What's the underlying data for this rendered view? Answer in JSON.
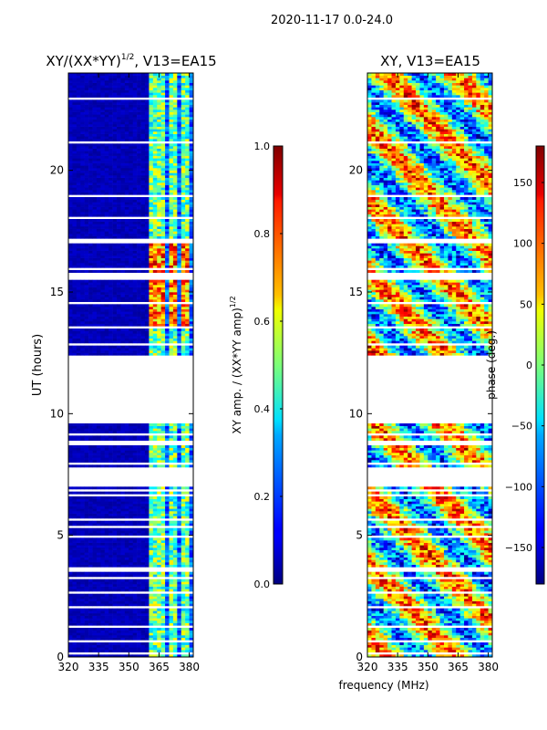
{
  "figure": {
    "suptitle": "2020-11-17 0.0-24.0",
    "shared_xlabel": "frequency (MHz)"
  },
  "chart_data": [
    {
      "type": "heatmap",
      "title_main": "XY/(XX*YY)",
      "title_exp": "1/2",
      "title_rest": ", V13=EA15",
      "ylabel": "UT (hours)",
      "xlim": [
        320,
        382
      ],
      "ylim": [
        0,
        24
      ],
      "xticks": [
        "320",
        "335",
        "350",
        "365",
        "380"
      ],
      "xtick_values": [
        320,
        335,
        350,
        365,
        380
      ],
      "yticks": [
        "0",
        "5",
        "10",
        "15",
        "20"
      ],
      "ytick_values": [
        0,
        5,
        10,
        15,
        20
      ],
      "data_gaps_hours": [
        [
          9.6,
          12.4
        ],
        [
          7.0,
          7.8
        ]
      ],
      "colorbar": {
        "label_main": "XY amp. / (XX*YY amp)",
        "label_exp": "1/2",
        "range": [
          0.0,
          1.0
        ],
        "ticks": [
          "0.0",
          "0.2",
          "0.4",
          "0.6",
          "0.8",
          "1.0"
        ],
        "tick_values": [
          0.0,
          0.2,
          0.4,
          0.6,
          0.8,
          1.0
        ],
        "colormap": "jet"
      }
    },
    {
      "type": "heatmap",
      "title": "XY, V13=EA15",
      "ylabel": "",
      "xlim": [
        320,
        382
      ],
      "ylim": [
        0,
        24
      ],
      "xticks": [
        "320",
        "335",
        "350",
        "365",
        "380"
      ],
      "xtick_values": [
        320,
        335,
        350,
        365,
        380
      ],
      "yticks": [
        "0",
        "5",
        "10",
        "15",
        "20"
      ],
      "ytick_values": [
        0,
        5,
        10,
        15,
        20
      ],
      "data_gaps_hours": [
        [
          9.6,
          12.4
        ],
        [
          7.0,
          7.8
        ]
      ],
      "colorbar": {
        "label": "phase (deg.)",
        "range": [
          -180,
          180
        ],
        "ticks": [
          "−150",
          "−100",
          "−50",
          "0",
          "50",
          "100",
          "150"
        ],
        "tick_values": [
          -150,
          -100,
          -50,
          0,
          50,
          100,
          150
        ],
        "colormap": "jet"
      }
    }
  ],
  "colors": {
    "jet_low": "#00007f",
    "jet_high": "#7f0000",
    "axis": "#000000",
    "background": "#ffffff"
  }
}
